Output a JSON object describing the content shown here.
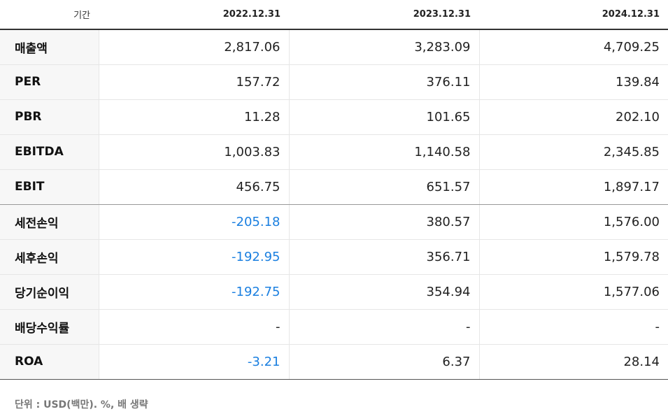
{
  "header": {
    "label": "기간",
    "periods": [
      "2022.12.31",
      "2023.12.31",
      "2024.12.31"
    ]
  },
  "rows": [
    {
      "label": "매출액",
      "values": [
        "2,817.06",
        "3,283.09",
        "4,709.25"
      ]
    },
    {
      "label": "PER",
      "values": [
        "157.72",
        "376.11",
        "139.84"
      ]
    },
    {
      "label": "PBR",
      "values": [
        "11.28",
        "101.65",
        "202.10"
      ]
    },
    {
      "label": "EBITDA",
      "values": [
        "1,003.83",
        "1,140.58",
        "2,345.85"
      ]
    },
    {
      "label": "EBIT",
      "values": [
        "456.75",
        "651.57",
        "1,897.17"
      ]
    },
    {
      "label": "세전손익",
      "values": [
        "-205.18",
        "380.57",
        "1,576.00"
      ]
    },
    {
      "label": "세후손익",
      "values": [
        "-192.95",
        "356.71",
        "1,579.78"
      ]
    },
    {
      "label": "당기순이익",
      "values": [
        "-192.75",
        "354.94",
        "1,577.06"
      ]
    },
    {
      "label": "배당수익률",
      "values": [
        "-",
        "-",
        "-"
      ]
    },
    {
      "label": "ROA",
      "values": [
        "-3.21",
        "6.37",
        "28.14"
      ]
    }
  ],
  "colors": {
    "negative": "#1a7fe0",
    "label_bg": "#f7f7f7"
  },
  "footnote": "단위 : USD(백만). %, 배 생략"
}
